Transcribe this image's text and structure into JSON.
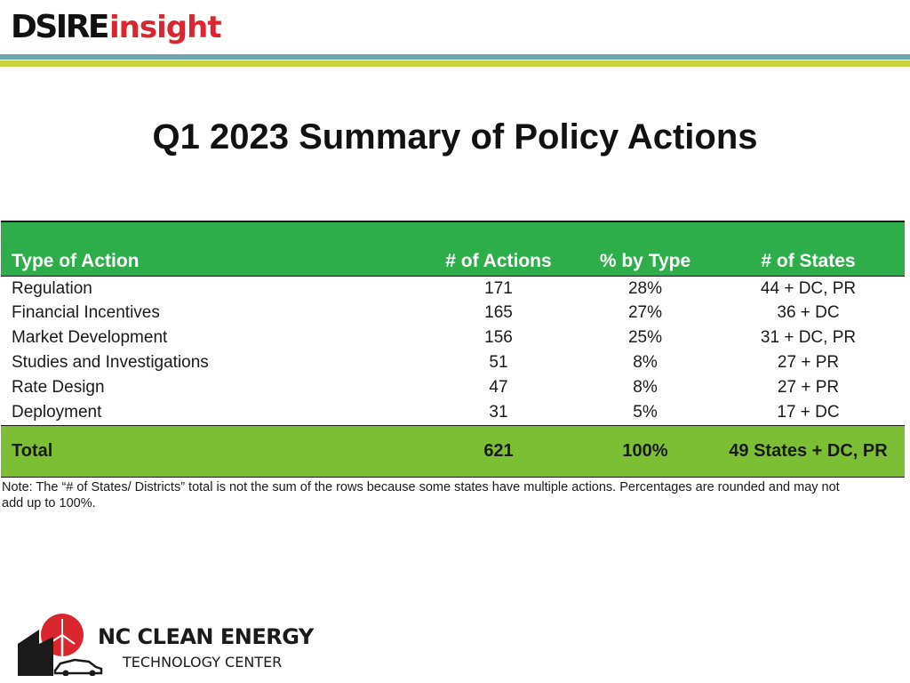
{
  "header": {
    "logo_part1": "DSIRE",
    "logo_part2": "insight",
    "colors": {
      "logo_red": "#d9262f",
      "rule_teal": "#6fa5ad",
      "rule_lime": "#c6d33b"
    }
  },
  "page_title": "Q1 2023 Summary of Policy Actions",
  "table": {
    "columns": [
      "Type of Action",
      "# of Actions",
      "% by Type",
      "# of States"
    ],
    "rows": [
      [
        "Regulation",
        "171",
        "28%",
        "44 + DC, PR"
      ],
      [
        "Financial Incentives",
        "165",
        "27%",
        "36 + DC"
      ],
      [
        "Market Development",
        "156",
        "25%",
        "31 + DC, PR"
      ],
      [
        "Studies and Investigations",
        "51",
        "8%",
        "27 + PR"
      ],
      [
        "Rate Design",
        "47",
        "8%",
        "27 + PR"
      ],
      [
        "Deployment",
        "31",
        "5%",
        "17 + DC"
      ]
    ],
    "total": [
      "Total",
      "621",
      "100%",
      "49 States + DC, PR"
    ],
    "colors": {
      "header_bg": "#2eae4b",
      "total_bg": "#7dbf34"
    }
  },
  "note": "Note: The “# of States/ Districts” total is not the sum of the rows because some states have multiple actions. Percentages are rounded and may not add up to 100%.",
  "footer": {
    "line1": "NC CLEAN ENERGY",
    "line2": "TECHNOLOGY CENTER",
    "logo_icons": [
      "sun-icon",
      "wind-turbine-icon",
      "building-icon",
      "car-icon"
    ],
    "colors": {
      "sun_red": "#d9262f"
    }
  }
}
